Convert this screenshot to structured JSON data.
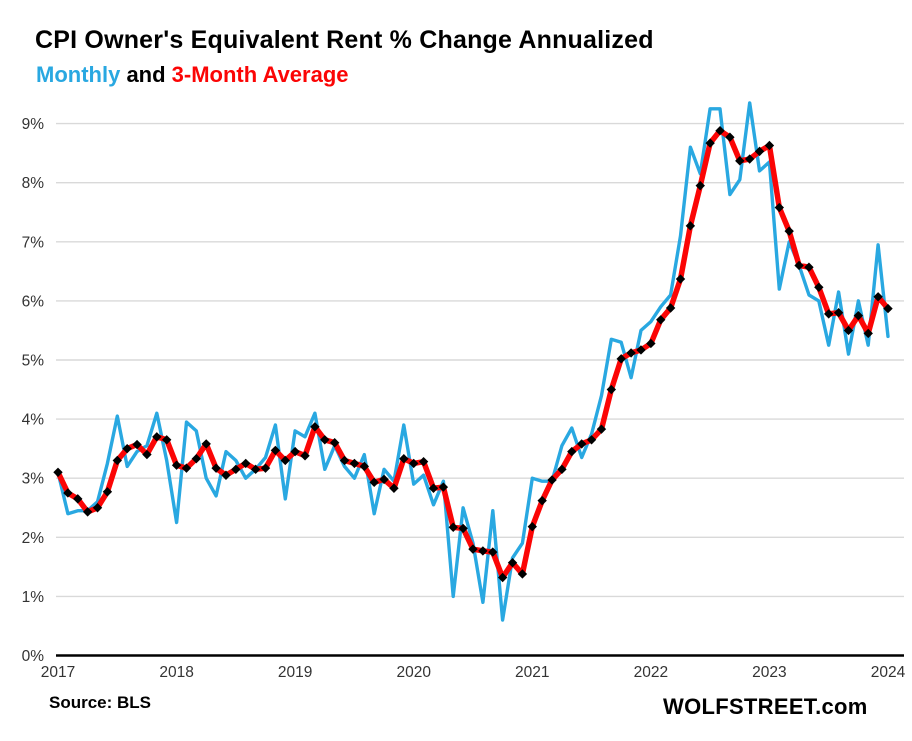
{
  "title": "CPI Owner's Equivalent Rent % Change Annualized",
  "subtitle": {
    "monthly": "Monthly",
    "and": " and ",
    "average": "3-Month Average"
  },
  "footer": {
    "source": "Source: BLS",
    "brand": "WOLFSTREET.com"
  },
  "colors": {
    "monthly_blue": "#29A8E1",
    "average_red": "#FB0505",
    "marker_black": "#000000",
    "grid_gray": "#D9D9D9",
    "axis_black": "#000000",
    "tick_text": "#333333"
  },
  "chart_data": {
    "type": "line",
    "title": "CPI Owner's Equivalent Rent % Change Annualized",
    "subtitle": "Monthly and 3-Month Average",
    "ylabel": "% change annualized",
    "ylim": [
      0,
      9.45
    ],
    "grid": "horizontal",
    "legend_position": "subtitle-inline",
    "xtick_labels": [
      "2017",
      "2018",
      "2019",
      "2020",
      "2021",
      "2022",
      "2023",
      "2024"
    ],
    "xtick_month_index": [
      0,
      12,
      24,
      36,
      48,
      60,
      72,
      84
    ],
    "ytick_labels": [
      "0%",
      "1%",
      "2%",
      "3%",
      "4%",
      "5%",
      "6%",
      "7%",
      "8%",
      "9%"
    ],
    "x_months": [
      "2017-01",
      "2017-02",
      "2017-03",
      "2017-04",
      "2017-05",
      "2017-06",
      "2017-07",
      "2017-08",
      "2017-09",
      "2017-10",
      "2017-11",
      "2017-12",
      "2018-01",
      "2018-02",
      "2018-03",
      "2018-04",
      "2018-05",
      "2018-06",
      "2018-07",
      "2018-08",
      "2018-09",
      "2018-10",
      "2018-11",
      "2018-12",
      "2019-01",
      "2019-02",
      "2019-03",
      "2019-04",
      "2019-05",
      "2019-06",
      "2019-07",
      "2019-08",
      "2019-09",
      "2019-10",
      "2019-11",
      "2019-12",
      "2020-01",
      "2020-02",
      "2020-03",
      "2020-04",
      "2020-05",
      "2020-06",
      "2020-07",
      "2020-08",
      "2020-09",
      "2020-10",
      "2020-11",
      "2020-12",
      "2021-01",
      "2021-02",
      "2021-03",
      "2021-04",
      "2021-05",
      "2021-06",
      "2021-07",
      "2021-08",
      "2021-09",
      "2021-10",
      "2021-11",
      "2021-12",
      "2022-01",
      "2022-02",
      "2022-03",
      "2022-04",
      "2022-05",
      "2022-06",
      "2022-07",
      "2022-08",
      "2022-09",
      "2022-10",
      "2022-11",
      "2022-12",
      "2023-01",
      "2023-02",
      "2023-03",
      "2023-04",
      "2023-05",
      "2023-06",
      "2023-07",
      "2023-08",
      "2023-09",
      "2023-10",
      "2023-11",
      "2023-12",
      "2024-01"
    ],
    "series": [
      {
        "name": "Monthly",
        "color_key": "monthly_blue",
        "marker": "none",
        "values": [
          3.1,
          2.4,
          2.45,
          2.45,
          2.6,
          3.25,
          4.05,
          3.2,
          3.45,
          3.55,
          4.1,
          3.3,
          2.25,
          3.95,
          3.8,
          3.0,
          2.7,
          3.45,
          3.3,
          3.0,
          3.15,
          3.35,
          3.9,
          2.65,
          3.8,
          3.7,
          4.1,
          3.15,
          3.55,
          3.2,
          3.0,
          3.4,
          2.4,
          3.15,
          2.95,
          3.9,
          2.9,
          3.05,
          2.55,
          2.95,
          1.0,
          2.5,
          1.9,
          0.9,
          2.45,
          0.6,
          1.65,
          1.9,
          3.0,
          2.95,
          2.95,
          3.55,
          3.85,
          3.35,
          3.75,
          4.4,
          5.35,
          5.3,
          4.7,
          5.5,
          5.65,
          5.9,
          6.1,
          7.1,
          8.6,
          8.15,
          9.25,
          9.25,
          7.8,
          8.05,
          9.35,
          8.2,
          8.35,
          6.2,
          7.0,
          6.6,
          6.1,
          6.0,
          5.25,
          6.15,
          5.1,
          6.0,
          5.25,
          6.95,
          5.4
        ]
      },
      {
        "name": "3-Month Average",
        "color_key": "average_red",
        "marker": "diamond",
        "values": [
          3.1,
          2.75,
          2.65,
          2.43,
          2.5,
          2.77,
          3.3,
          3.5,
          3.57,
          3.4,
          3.7,
          3.65,
          3.22,
          3.17,
          3.33,
          3.58,
          3.17,
          3.05,
          3.15,
          3.25,
          3.15,
          3.17,
          3.47,
          3.3,
          3.45,
          3.38,
          3.87,
          3.65,
          3.6,
          3.3,
          3.25,
          3.2,
          2.93,
          2.98,
          2.83,
          3.33,
          3.25,
          3.28,
          2.83,
          2.85,
          2.17,
          2.15,
          1.8,
          1.77,
          1.75,
          1.32,
          1.57,
          1.38,
          2.18,
          2.62,
          2.97,
          3.15,
          3.45,
          3.58,
          3.65,
          3.83,
          4.5,
          5.02,
          5.12,
          5.17,
          5.28,
          5.68,
          5.88,
          6.37,
          7.27,
          7.95,
          8.67,
          8.88,
          8.77,
          8.37,
          8.4,
          8.53,
          8.63,
          7.58,
          7.18,
          6.6,
          6.57,
          6.23,
          5.78,
          5.8,
          5.5,
          5.75,
          5.45,
          6.07,
          5.87
        ]
      }
    ]
  }
}
